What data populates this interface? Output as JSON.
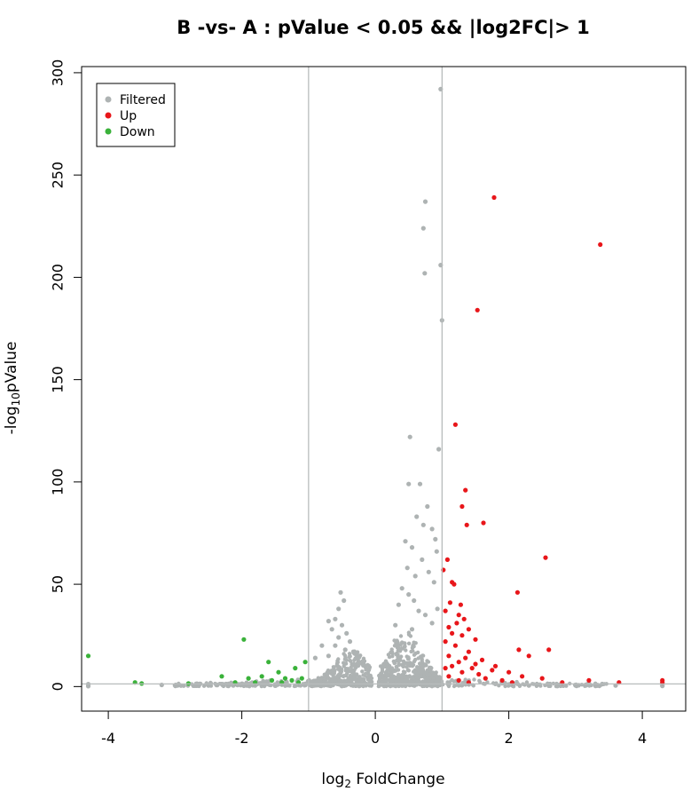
{
  "chart_data": {
    "type": "scatter",
    "title": "B -vs- A : pValue < 0.05 && |log2FC|> 1",
    "xlabel": {
      "prefix": "log",
      "sub": "2",
      "suffix": " FoldChange"
    },
    "ylabel": {
      "prefix": "-log",
      "sub": "10",
      "suffix": "pValue"
    },
    "xlim": [
      -4.4,
      4.65
    ],
    "ylim": [
      -12,
      303
    ],
    "xticks": [
      -4,
      -2,
      0,
      2,
      4
    ],
    "yticks": [
      0,
      50,
      100,
      150,
      200,
      250,
      300
    ],
    "thresholds": {
      "fc_vlines": [
        -1,
        1
      ],
      "p_hline": 1.3
    },
    "colors": {
      "Filtered": "#aeb3b3",
      "Up": "#e8161a",
      "Down": "#3ab23a",
      "ref_line": "#b8bcbc"
    },
    "legend": {
      "position": "top-left",
      "entries": [
        "Filtered",
        "Up",
        "Down"
      ]
    },
    "series": [
      {
        "name": "Filtered",
        "points": [
          [
            0.98,
            292
          ],
          [
            0.75,
            237
          ],
          [
            0.72,
            224
          ],
          [
            0.98,
            206
          ],
          [
            0.74,
            202
          ],
          [
            1.0,
            179
          ],
          [
            0.52,
            122
          ],
          [
            0.95,
            116
          ],
          [
            0.5,
            99
          ],
          [
            0.67,
            99
          ],
          [
            0.78,
            88
          ],
          [
            0.62,
            83
          ],
          [
            0.72,
            79
          ],
          [
            0.85,
            77
          ],
          [
            0.9,
            72
          ],
          [
            0.45,
            71
          ],
          [
            0.55,
            68
          ],
          [
            0.92,
            66
          ],
          [
            0.7,
            62
          ],
          [
            0.48,
            58
          ],
          [
            0.8,
            56
          ],
          [
            0.6,
            54
          ],
          [
            0.4,
            48
          ],
          [
            0.88,
            51
          ],
          [
            0.5,
            45
          ],
          [
            0.58,
            42
          ],
          [
            0.35,
            40
          ],
          [
            0.93,
            38
          ],
          [
            0.65,
            37
          ],
          [
            0.75,
            35
          ],
          [
            0.3,
            30
          ],
          [
            0.85,
            31
          ],
          [
            0.55,
            28
          ],
          [
            -0.52,
            46
          ],
          [
            -0.47,
            42
          ],
          [
            -0.55,
            38
          ],
          [
            -0.6,
            33
          ],
          [
            -0.7,
            32
          ],
          [
            -0.5,
            30
          ],
          [
            -0.65,
            28
          ],
          [
            -0.43,
            26
          ],
          [
            -0.55,
            24
          ],
          [
            -0.38,
            22
          ],
          [
            -0.6,
            20
          ],
          [
            -0.8,
            20
          ],
          [
            -0.45,
            18
          ],
          [
            -0.7,
            15
          ],
          [
            -0.9,
            14
          ],
          [
            -4.3,
            1.2
          ],
          [
            -4.3,
            0.2
          ],
          [
            -3.2,
            0.8
          ],
          [
            -3.0,
            0.6
          ],
          [
            -2.7,
            0.4
          ],
          [
            -2.5,
            0.5
          ],
          [
            -2.2,
            0.3
          ],
          [
            -1.8,
            0.5
          ],
          [
            -1.5,
            0.4
          ],
          [
            2.3,
            0.5
          ],
          [
            2.6,
            0.4
          ],
          [
            3.0,
            0.6
          ],
          [
            3.3,
            0.3
          ],
          [
            3.6,
            0.5
          ],
          [
            4.3,
            0.3
          ],
          [
            4.3,
            0.6
          ]
        ]
      },
      {
        "name": "Up",
        "points": [
          [
            1.78,
            239
          ],
          [
            3.37,
            216
          ],
          [
            1.53,
            184
          ],
          [
            1.2,
            128
          ],
          [
            1.35,
            96
          ],
          [
            1.3,
            88
          ],
          [
            1.62,
            80
          ],
          [
            1.37,
            79
          ],
          [
            2.55,
            63
          ],
          [
            1.08,
            62
          ],
          [
            1.02,
            57
          ],
          [
            1.15,
            51
          ],
          [
            1.18,
            50
          ],
          [
            2.13,
            46
          ],
          [
            1.12,
            41
          ],
          [
            1.28,
            40
          ],
          [
            1.05,
            37
          ],
          [
            1.25,
            35
          ],
          [
            1.33,
            33
          ],
          [
            1.22,
            31
          ],
          [
            1.1,
            29
          ],
          [
            1.4,
            28
          ],
          [
            1.15,
            26
          ],
          [
            1.3,
            25
          ],
          [
            1.5,
            23
          ],
          [
            1.05,
            22
          ],
          [
            1.2,
            20
          ],
          [
            2.6,
            18
          ],
          [
            2.15,
            18
          ],
          [
            1.4,
            17
          ],
          [
            2.3,
            15
          ],
          [
            1.1,
            15
          ],
          [
            1.35,
            14
          ],
          [
            1.6,
            13
          ],
          [
            1.25,
            12
          ],
          [
            1.5,
            11
          ],
          [
            1.8,
            10
          ],
          [
            1.15,
            10
          ],
          [
            1.45,
            9
          ],
          [
            1.05,
            9
          ],
          [
            1.75,
            8
          ],
          [
            2.0,
            7
          ],
          [
            1.3,
            7
          ],
          [
            1.55,
            6
          ],
          [
            2.2,
            5
          ],
          [
            1.1,
            5
          ],
          [
            1.65,
            4
          ],
          [
            2.5,
            4
          ],
          [
            3.2,
            3
          ],
          [
            1.9,
            3
          ],
          [
            2.8,
            2
          ],
          [
            3.65,
            2
          ],
          [
            4.3,
            3
          ],
          [
            4.3,
            2
          ],
          [
            1.4,
            2
          ],
          [
            2.05,
            2
          ],
          [
            1.25,
            3
          ]
        ]
      },
      {
        "name": "Down",
        "points": [
          [
            -4.3,
            15
          ],
          [
            -1.97,
            23
          ],
          [
            -1.6,
            12
          ],
          [
            -1.05,
            12
          ],
          [
            -1.2,
            9
          ],
          [
            -1.45,
            7
          ],
          [
            -2.3,
            5
          ],
          [
            -1.7,
            5
          ],
          [
            -1.9,
            4
          ],
          [
            -1.35,
            4
          ],
          [
            -1.1,
            4
          ],
          [
            -1.55,
            3
          ],
          [
            -1.25,
            3
          ],
          [
            -1.8,
            2
          ],
          [
            -2.1,
            2
          ],
          [
            -3.6,
            2
          ],
          [
            -3.5,
            1.5
          ],
          [
            -2.8,
            1.5
          ],
          [
            -1.4,
            2
          ],
          [
            -1.15,
            2
          ]
        ]
      }
    ]
  }
}
